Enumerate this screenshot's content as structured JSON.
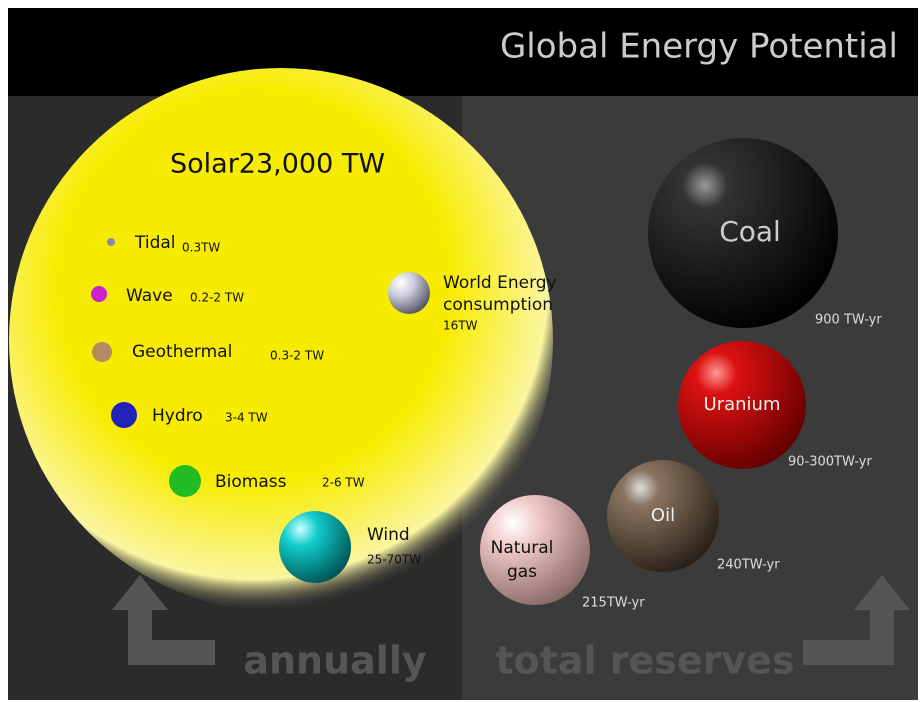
{
  "header": {
    "title": "Global Energy Potential"
  },
  "annual": {
    "solar": "Solar23,000 TW",
    "sources": [
      {
        "label": "Tidal",
        "amount": "0.3TW"
      },
      {
        "label": "Wave",
        "amount": "0.2-2 TW"
      },
      {
        "label": "Geothermal",
        "amount": "0.3-2 TW"
      },
      {
        "label": "Hydro",
        "amount": "3-4 TW"
      },
      {
        "label": "Biomass",
        "amount": "2-6 TW"
      },
      {
        "label": "Wind",
        "amount": "25-70TW"
      }
    ],
    "consumption": {
      "label_1": "World Energy",
      "label_2": "consumption",
      "amount": "16TW"
    }
  },
  "reserves": [
    {
      "label": "Coal",
      "amount": "900 TW-yr"
    },
    {
      "label": "Uranium",
      "amount": "90-300TW-yr"
    },
    {
      "label": "Oil",
      "amount": "240TW-yr"
    },
    {
      "label_1": "Natural",
      "label_2": "gas",
      "amount": "215TW-yr"
    }
  ],
  "footer": {
    "left": "annually",
    "right": "total reserves"
  }
}
